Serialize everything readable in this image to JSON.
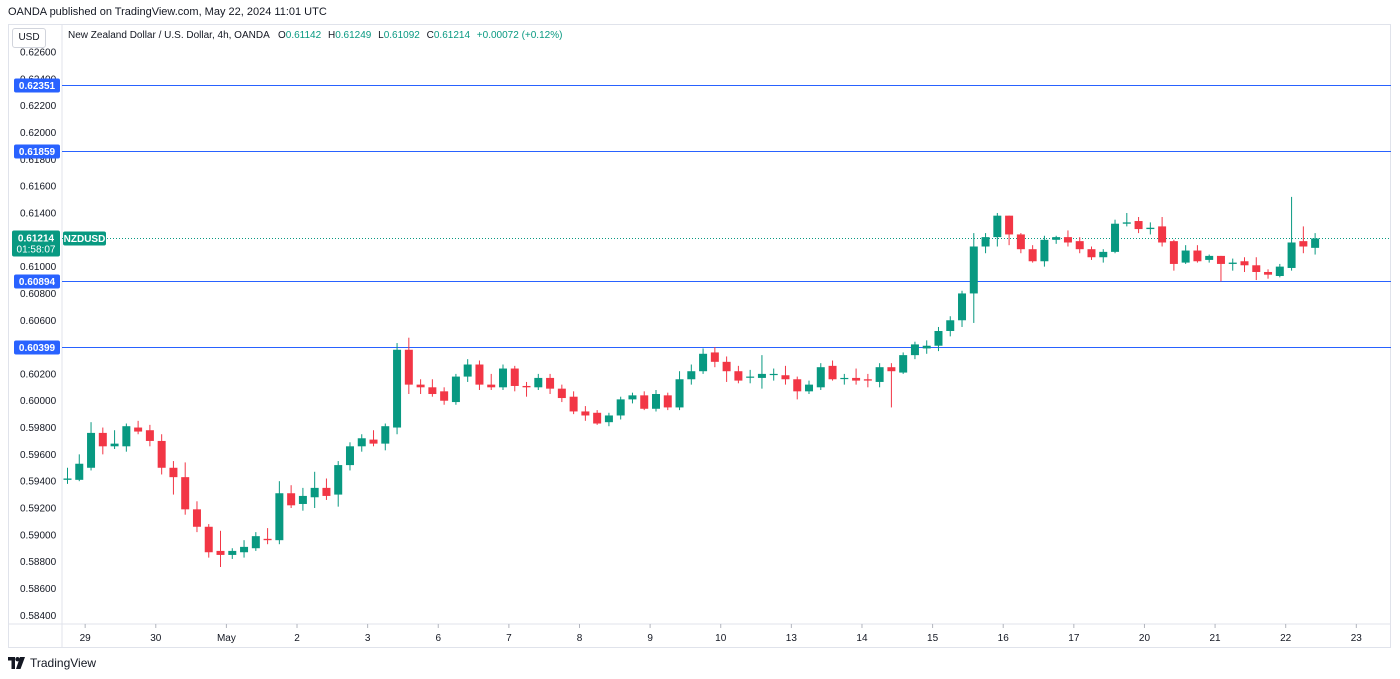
{
  "header": {
    "published_text": "OANDA published on TradingView.com, May 22, 2024 11:01 UTC"
  },
  "legend": {
    "currency": "USD",
    "instrument": "New Zealand Dollar / U.S. Dollar, 4h, OANDA",
    "o_label": "O",
    "o_value": "0.61142",
    "h_label": "H",
    "h_value": "0.61249",
    "l_label": "L",
    "l_value": "0.61092",
    "c_label": "C",
    "c_value": "0.61214",
    "change": "+0.00072 (+0.12%)"
  },
  "price_tag": {
    "price": "0.61214",
    "countdown": "01:58:07",
    "symbol": "NZDUSD",
    "color": "#089981"
  },
  "brand": {
    "name": "TradingView"
  },
  "colors": {
    "up": "#089981",
    "down": "#f23645",
    "level": "#2962ff"
  },
  "chart_data": {
    "type": "candlestick",
    "ylim": [
      0.5832,
      0.6269
    ],
    "y_ticks": [
      "0.58400",
      "0.58600",
      "0.58800",
      "0.59000",
      "0.59200",
      "0.59400",
      "0.59600",
      "0.59800",
      "0.60000",
      "0.60200",
      "0.60400",
      "0.60600",
      "0.60800",
      "0.61000",
      "0.61200",
      "0.61400",
      "0.61600",
      "0.61800",
      "0.62000",
      "0.62200",
      "0.62400",
      "0.62600"
    ],
    "x_ticks": [
      {
        "label": "29",
        "index": 1.5
      },
      {
        "label": "30",
        "index": 7.5
      },
      {
        "label": "May",
        "index": 13.5
      },
      {
        "label": "2",
        "index": 19.5
      },
      {
        "label": "3",
        "index": 25.5
      },
      {
        "label": "6",
        "index": 31.5
      },
      {
        "label": "7",
        "index": 37.5
      },
      {
        "label": "8",
        "index": 43.5
      },
      {
        "label": "9",
        "index": 49.5
      },
      {
        "label": "10",
        "index": 55.5
      },
      {
        "label": "13",
        "index": 61.5
      },
      {
        "label": "14",
        "index": 67.5
      },
      {
        "label": "15",
        "index": 73.5
      },
      {
        "label": "16",
        "index": 79.5
      },
      {
        "label": "17",
        "index": 85.5
      },
      {
        "label": "20",
        "index": 91.5
      },
      {
        "label": "21",
        "index": 97.5
      },
      {
        "label": "22",
        "index": 103.5
      },
      {
        "label": "23",
        "index": 109.5
      }
    ],
    "horizontal_levels": [
      {
        "value": 0.62351,
        "label": "0.62351"
      },
      {
        "value": 0.61859,
        "label": "0.61859"
      },
      {
        "value": 0.60894,
        "label": "0.60894"
      },
      {
        "value": 0.60399,
        "label": "0.60399"
      }
    ],
    "current_price": 0.61214,
    "candles": [
      {
        "o": 0.5941,
        "h": 0.595,
        "l": 0.5938,
        "c": 0.5942
      },
      {
        "o": 0.5941,
        "h": 0.596,
        "l": 0.594,
        "c": 0.5953
      },
      {
        "o": 0.595,
        "h": 0.5984,
        "l": 0.5948,
        "c": 0.5976
      },
      {
        "o": 0.5976,
        "h": 0.598,
        "l": 0.596,
        "c": 0.5966
      },
      {
        "o": 0.5966,
        "h": 0.5978,
        "l": 0.5964,
        "c": 0.5968
      },
      {
        "o": 0.5966,
        "h": 0.5983,
        "l": 0.5962,
        "c": 0.5981
      },
      {
        "o": 0.598,
        "h": 0.5985,
        "l": 0.5975,
        "c": 0.5977
      },
      {
        "o": 0.5978,
        "h": 0.5982,
        "l": 0.5966,
        "c": 0.597
      },
      {
        "o": 0.597,
        "h": 0.5975,
        "l": 0.5945,
        "c": 0.595
      },
      {
        "o": 0.595,
        "h": 0.5955,
        "l": 0.593,
        "c": 0.5943
      },
      {
        "o": 0.5943,
        "h": 0.5954,
        "l": 0.5915,
        "c": 0.5919
      },
      {
        "o": 0.5919,
        "h": 0.5925,
        "l": 0.5902,
        "c": 0.5906
      },
      {
        "o": 0.5906,
        "h": 0.5908,
        "l": 0.5883,
        "c": 0.5887
      },
      {
        "o": 0.5888,
        "h": 0.5903,
        "l": 0.5876,
        "c": 0.5885
      },
      {
        "o": 0.5885,
        "h": 0.589,
        "l": 0.5882,
        "c": 0.5888
      },
      {
        "o": 0.5887,
        "h": 0.5896,
        "l": 0.5883,
        "c": 0.5891
      },
      {
        "o": 0.589,
        "h": 0.5902,
        "l": 0.5888,
        "c": 0.5899
      },
      {
        "o": 0.5897,
        "h": 0.5905,
        "l": 0.5893,
        "c": 0.5896
      },
      {
        "o": 0.5896,
        "h": 0.594,
        "l": 0.5893,
        "c": 0.5931
      },
      {
        "o": 0.5931,
        "h": 0.5937,
        "l": 0.592,
        "c": 0.5922
      },
      {
        "o": 0.5923,
        "h": 0.5935,
        "l": 0.5918,
        "c": 0.5929
      },
      {
        "o": 0.5928,
        "h": 0.5947,
        "l": 0.592,
        "c": 0.5935
      },
      {
        "o": 0.5935,
        "h": 0.5942,
        "l": 0.5926,
        "c": 0.5929
      },
      {
        "o": 0.593,
        "h": 0.5955,
        "l": 0.5921,
        "c": 0.5952
      },
      {
        "o": 0.5952,
        "h": 0.5969,
        "l": 0.5948,
        "c": 0.5966
      },
      {
        "o": 0.5966,
        "h": 0.5975,
        "l": 0.5962,
        "c": 0.5972
      },
      {
        "o": 0.5971,
        "h": 0.5978,
        "l": 0.5966,
        "c": 0.5968
      },
      {
        "o": 0.5968,
        "h": 0.5983,
        "l": 0.5963,
        "c": 0.5981
      },
      {
        "o": 0.598,
        "h": 0.6043,
        "l": 0.5975,
        "c": 0.6038
      },
      {
        "o": 0.6038,
        "h": 0.6047,
        "l": 0.6005,
        "c": 0.6012
      },
      {
        "o": 0.6012,
        "h": 0.6016,
        "l": 0.6005,
        "c": 0.601
      },
      {
        "o": 0.601,
        "h": 0.6016,
        "l": 0.6003,
        "c": 0.6005
      },
      {
        "o": 0.6007,
        "h": 0.601,
        "l": 0.5997,
        "c": 0.6
      },
      {
        "o": 0.5999,
        "h": 0.602,
        "l": 0.5997,
        "c": 0.6018
      },
      {
        "o": 0.6018,
        "h": 0.6031,
        "l": 0.6014,
        "c": 0.6027
      },
      {
        "o": 0.6027,
        "h": 0.603,
        "l": 0.6008,
        "c": 0.6012
      },
      {
        "o": 0.6012,
        "h": 0.602,
        "l": 0.6008,
        "c": 0.601
      },
      {
        "o": 0.601,
        "h": 0.6027,
        "l": 0.6008,
        "c": 0.6024
      },
      {
        "o": 0.6024,
        "h": 0.6026,
        "l": 0.6007,
        "c": 0.6011
      },
      {
        "o": 0.6011,
        "h": 0.6014,
        "l": 0.6003,
        "c": 0.601
      },
      {
        "o": 0.601,
        "h": 0.602,
        "l": 0.6008,
        "c": 0.6017
      },
      {
        "o": 0.6017,
        "h": 0.602,
        "l": 0.6005,
        "c": 0.6009
      },
      {
        "o": 0.6009,
        "h": 0.6012,
        "l": 0.5999,
        "c": 0.6002
      },
      {
        "o": 0.6003,
        "h": 0.6007,
        "l": 0.599,
        "c": 0.5992
      },
      {
        "o": 0.5992,
        "h": 0.5996,
        "l": 0.5985,
        "c": 0.5989
      },
      {
        "o": 0.5991,
        "h": 0.5993,
        "l": 0.5982,
        "c": 0.5983
      },
      {
        "o": 0.5984,
        "h": 0.5991,
        "l": 0.5981,
        "c": 0.5989
      },
      {
        "o": 0.5989,
        "h": 0.6003,
        "l": 0.5986,
        "c": 0.6001
      },
      {
        "o": 0.6001,
        "h": 0.6006,
        "l": 0.5998,
        "c": 0.6004
      },
      {
        "o": 0.6004,
        "h": 0.6007,
        "l": 0.5993,
        "c": 0.5994
      },
      {
        "o": 0.5994,
        "h": 0.6008,
        "l": 0.5992,
        "c": 0.6005
      },
      {
        "o": 0.6004,
        "h": 0.6006,
        "l": 0.5993,
        "c": 0.5995
      },
      {
        "o": 0.5995,
        "h": 0.6022,
        "l": 0.5993,
        "c": 0.6016
      },
      {
        "o": 0.6016,
        "h": 0.6027,
        "l": 0.6012,
        "c": 0.6022
      },
      {
        "o": 0.6022,
        "h": 0.6039,
        "l": 0.602,
        "c": 0.6035
      },
      {
        "o": 0.6036,
        "h": 0.604,
        "l": 0.6025,
        "c": 0.6029
      },
      {
        "o": 0.6029,
        "h": 0.6033,
        "l": 0.6014,
        "c": 0.6022
      },
      {
        "o": 0.6022,
        "h": 0.6026,
        "l": 0.6013,
        "c": 0.6015
      },
      {
        "o": 0.6018,
        "h": 0.6023,
        "l": 0.6013,
        "c": 0.6018
      },
      {
        "o": 0.6017,
        "h": 0.6034,
        "l": 0.6009,
        "c": 0.602
      },
      {
        "o": 0.602,
        "h": 0.6024,
        "l": 0.6015,
        "c": 0.602
      },
      {
        "o": 0.6019,
        "h": 0.6026,
        "l": 0.6012,
        "c": 0.6016
      },
      {
        "o": 0.6016,
        "h": 0.6018,
        "l": 0.6001,
        "c": 0.6007
      },
      {
        "o": 0.6007,
        "h": 0.6015,
        "l": 0.6005,
        "c": 0.6012
      },
      {
        "o": 0.601,
        "h": 0.6028,
        "l": 0.6008,
        "c": 0.6025
      },
      {
        "o": 0.6026,
        "h": 0.603,
        "l": 0.6015,
        "c": 0.6016
      },
      {
        "o": 0.6017,
        "h": 0.602,
        "l": 0.6012,
        "c": 0.6017
      },
      {
        "o": 0.6017,
        "h": 0.6024,
        "l": 0.6012,
        "c": 0.6015
      },
      {
        "o": 0.6016,
        "h": 0.602,
        "l": 0.601,
        "c": 0.6015
      },
      {
        "o": 0.6014,
        "h": 0.6028,
        "l": 0.601,
        "c": 0.6025
      },
      {
        "o": 0.6025,
        "h": 0.6028,
        "l": 0.5995,
        "c": 0.6022
      },
      {
        "o": 0.6021,
        "h": 0.6036,
        "l": 0.602,
        "c": 0.6034
      },
      {
        "o": 0.6034,
        "h": 0.6044,
        "l": 0.6031,
        "c": 0.6042
      },
      {
        "o": 0.6039,
        "h": 0.6045,
        "l": 0.6035,
        "c": 0.6041
      },
      {
        "o": 0.6041,
        "h": 0.6055,
        "l": 0.6037,
        "c": 0.6052
      },
      {
        "o": 0.6052,
        "h": 0.6063,
        "l": 0.6048,
        "c": 0.606
      },
      {
        "o": 0.606,
        "h": 0.6082,
        "l": 0.6055,
        "c": 0.608
      },
      {
        "o": 0.608,
        "h": 0.6125,
        "l": 0.6058,
        "c": 0.6115
      },
      {
        "o": 0.6115,
        "h": 0.6125,
        "l": 0.611,
        "c": 0.6122
      },
      {
        "o": 0.6122,
        "h": 0.614,
        "l": 0.6115,
        "c": 0.6138
      },
      {
        "o": 0.6138,
        "h": 0.6138,
        "l": 0.6116,
        "c": 0.6124
      },
      {
        "o": 0.6124,
        "h": 0.6125,
        "l": 0.611,
        "c": 0.6113
      },
      {
        "o": 0.6113,
        "h": 0.6116,
        "l": 0.6103,
        "c": 0.6104
      },
      {
        "o": 0.6104,
        "h": 0.6123,
        "l": 0.61,
        "c": 0.612
      },
      {
        "o": 0.612,
        "h": 0.6123,
        "l": 0.6117,
        "c": 0.6122
      },
      {
        "o": 0.6122,
        "h": 0.6127,
        "l": 0.6115,
        "c": 0.6118
      },
      {
        "o": 0.6119,
        "h": 0.6122,
        "l": 0.611,
        "c": 0.6113
      },
      {
        "o": 0.6113,
        "h": 0.6115,
        "l": 0.6105,
        "c": 0.6107
      },
      {
        "o": 0.6107,
        "h": 0.6113,
        "l": 0.6103,
        "c": 0.6111
      },
      {
        "o": 0.6111,
        "h": 0.6135,
        "l": 0.611,
        "c": 0.6132
      },
      {
        "o": 0.6132,
        "h": 0.614,
        "l": 0.613,
        "c": 0.6133
      },
      {
        "o": 0.6134,
        "h": 0.6137,
        "l": 0.6125,
        "c": 0.6128
      },
      {
        "o": 0.6128,
        "h": 0.6133,
        "l": 0.6124,
        "c": 0.6129
      },
      {
        "o": 0.613,
        "h": 0.6137,
        "l": 0.6115,
        "c": 0.6118
      },
      {
        "o": 0.6119,
        "h": 0.612,
        "l": 0.6097,
        "c": 0.6102
      },
      {
        "o": 0.6103,
        "h": 0.6116,
        "l": 0.6102,
        "c": 0.6112
      },
      {
        "o": 0.6112,
        "h": 0.6116,
        "l": 0.6103,
        "c": 0.6104
      },
      {
        "o": 0.6105,
        "h": 0.6109,
        "l": 0.6103,
        "c": 0.6108
      },
      {
        "o": 0.6108,
        "h": 0.6108,
        "l": 0.6089,
        "c": 0.6102
      },
      {
        "o": 0.6102,
        "h": 0.6106,
        "l": 0.6097,
        "c": 0.6103
      },
      {
        "o": 0.6104,
        "h": 0.6107,
        "l": 0.6096,
        "c": 0.6101
      },
      {
        "o": 0.6101,
        "h": 0.6107,
        "l": 0.609,
        "c": 0.6096
      },
      {
        "o": 0.6096,
        "h": 0.6098,
        "l": 0.6091,
        "c": 0.6094
      },
      {
        "o": 0.6093,
        "h": 0.6102,
        "l": 0.6092,
        "c": 0.61
      },
      {
        "o": 0.6099,
        "h": 0.6152,
        "l": 0.6097,
        "c": 0.6118
      },
      {
        "o": 0.6119,
        "h": 0.613,
        "l": 0.611,
        "c": 0.6115
      },
      {
        "o": 0.6114,
        "h": 0.6125,
        "l": 0.6109,
        "c": 0.6121
      }
    ]
  }
}
